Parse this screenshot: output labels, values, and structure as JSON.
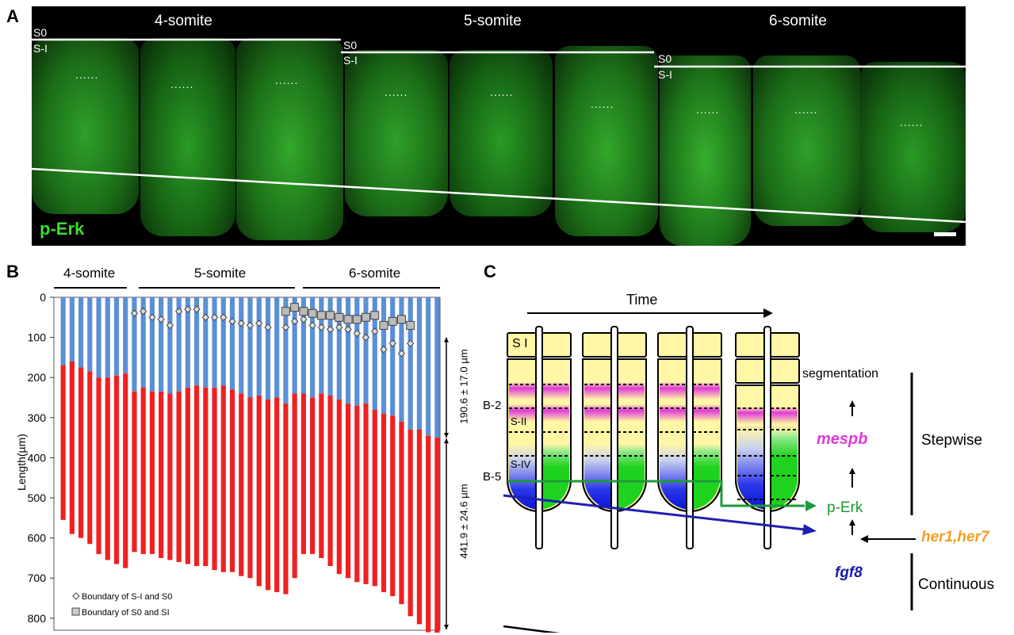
{
  "panelA": {
    "letter": "A",
    "stages": [
      "4-somite",
      "5-somite",
      "6-somite"
    ],
    "seg_s0": "S0",
    "seg_si": "S-I",
    "dots": "......",
    "marker": "p-Erk"
  },
  "panelB": {
    "letter": "B",
    "groups": [
      "4-somite",
      "5-somite",
      "6-somite"
    ],
    "bracket_top": "190.6 ± 17.0 µm",
    "bracket_bottom": "441.9 ± 24.6 µm",
    "legend": [
      "Boundary of S-I and S0",
      "Boundary of S0 and SI"
    ]
  },
  "chart_data": {
    "type": "bar",
    "ylabel": "Length(µm)",
    "ylim": [
      0,
      830
    ],
    "yticks": [
      0,
      100,
      200,
      300,
      400,
      500,
      600,
      700,
      800
    ],
    "blue_top": [
      170,
      160,
      175,
      185,
      200,
      200,
      195,
      190,
      235,
      225,
      235,
      235,
      240,
      235,
      225,
      220,
      225,
      225,
      220,
      230,
      240,
      250,
      245,
      255,
      250,
      265,
      240,
      240,
      250,
      240,
      245,
      255,
      265,
      270,
      265,
      280,
      290,
      295,
      310,
      330,
      330,
      345,
      350
    ],
    "red_bottom": [
      555,
      590,
      600,
      615,
      640,
      655,
      665,
      675,
      635,
      640,
      640,
      650,
      655,
      660,
      665,
      670,
      670,
      680,
      685,
      685,
      695,
      700,
      720,
      730,
      735,
      740,
      700,
      640,
      640,
      650,
      670,
      690,
      700,
      710,
      715,
      720,
      735,
      745,
      765,
      795,
      815,
      835,
      840
    ],
    "diamonds": [
      [
        8,
        40
      ],
      [
        9,
        35
      ],
      [
        10,
        50
      ],
      [
        11,
        55
      ],
      [
        12,
        70
      ],
      [
        13,
        35
      ],
      [
        14,
        30
      ],
      [
        15,
        30
      ],
      [
        16,
        50
      ],
      [
        17,
        50
      ],
      [
        18,
        50
      ],
      [
        19,
        60
      ],
      [
        20,
        65
      ],
      [
        21,
        70
      ],
      [
        22,
        65
      ],
      [
        23,
        75
      ],
      [
        25,
        75
      ],
      [
        26,
        60
      ],
      [
        27,
        55
      ],
      [
        28,
        70
      ],
      [
        29,
        75
      ],
      [
        30,
        80
      ],
      [
        31,
        75
      ],
      [
        32,
        80
      ],
      [
        33,
        90
      ],
      [
        34,
        100
      ],
      [
        35,
        85
      ],
      [
        36,
        130
      ],
      [
        37,
        115
      ],
      [
        38,
        140
      ],
      [
        39,
        115
      ]
    ],
    "squares": [
      [
        25,
        35
      ],
      [
        26,
        25
      ],
      [
        27,
        35
      ],
      [
        28,
        40
      ],
      [
        29,
        45
      ],
      [
        30,
        45
      ],
      [
        31,
        50
      ],
      [
        32,
        55
      ],
      [
        33,
        55
      ],
      [
        34,
        50
      ],
      [
        35,
        45
      ],
      [
        36,
        70
      ],
      [
        37,
        60
      ],
      [
        38,
        55
      ],
      [
        39,
        70
      ]
    ]
  },
  "panelC": {
    "letter": "C",
    "time": "Time",
    "s1": "S I",
    "b2": "B-2",
    "b5": "B-5",
    "s2": "S-II",
    "s4": "S-IV",
    "segmentation": "segmentation",
    "mespb": "mespb",
    "perk": "p-Erk",
    "her": "her1,her7",
    "fgf8": "fgf8",
    "stepwise": "Stepwise",
    "continuous": "Continuous",
    "colors": {
      "yellow": "#fff7a6",
      "magenta": "#e03ad8",
      "green": "#1fd21f",
      "blue": "#1020e0",
      "orange": "#f0a020",
      "perk": "#1e9a3a",
      "fgf": "#1a1aa8"
    }
  }
}
